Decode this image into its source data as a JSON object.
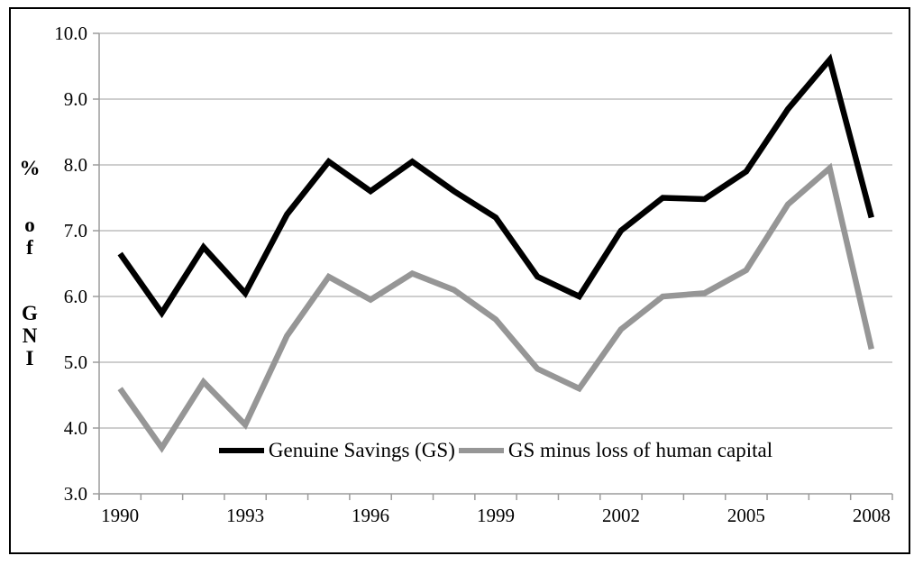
{
  "chart_data": {
    "type": "line",
    "title": "",
    "xlabel": "",
    "ylabel": "% of GNI",
    "ylabel_chars": [
      "%",
      "o",
      "f",
      "G",
      "N",
      "I"
    ],
    "x": [
      1990,
      1991,
      1992,
      1993,
      1994,
      1995,
      1996,
      1997,
      1998,
      1999,
      2000,
      2001,
      2002,
      2003,
      2004,
      2005,
      2006,
      2007,
      2008
    ],
    "x_tick_labels": [
      "1990",
      "1993",
      "1996",
      "1999",
      "2002",
      "2005",
      "2008"
    ],
    "ylim": [
      3.0,
      10.0
    ],
    "y_ticks": [
      3.0,
      4.0,
      5.0,
      6.0,
      7.0,
      8.0,
      9.0,
      10.0
    ],
    "y_tick_labels": [
      "3.0",
      "4.0",
      "5.0",
      "6.0",
      "7.0",
      "8.0",
      "9.0",
      "10.0"
    ],
    "grid": true,
    "legend_position": "bottom-center-inside",
    "series": [
      {
        "name": "Genuine Savings (GS)",
        "color": "#000000",
        "values": [
          6.65,
          5.75,
          6.75,
          6.05,
          7.25,
          8.05,
          7.6,
          8.05,
          7.6,
          7.2,
          6.3,
          6.0,
          7.0,
          7.5,
          7.48,
          7.9,
          8.85,
          9.6,
          7.2
        ]
      },
      {
        "name": "GS minus loss of human capital",
        "color": "#969696",
        "values": [
          4.6,
          3.7,
          4.7,
          4.05,
          5.4,
          6.3,
          5.95,
          6.35,
          6.1,
          5.65,
          4.9,
          4.6,
          5.5,
          6.0,
          6.05,
          6.4,
          7.4,
          7.95,
          5.2
        ]
      }
    ]
  },
  "colors": {
    "gridline": "#b0b0b0",
    "axis": "#9c9c9c",
    "text": "#000000",
    "background": "#ffffff",
    "border": "#000000"
  }
}
